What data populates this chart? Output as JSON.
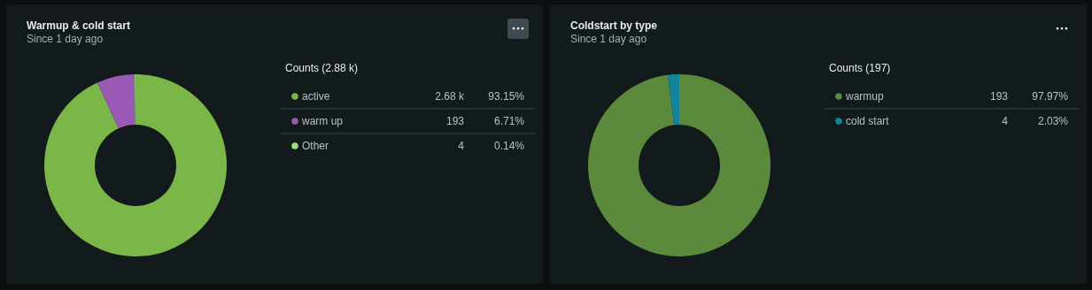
{
  "chart_data": [
    {
      "type": "donut",
      "title": "Warmup & cold start",
      "subtitle": "Since 1 day ago",
      "legend_title": "Counts (2.88 k)",
      "legend": "right",
      "categories": [
        "active",
        "warm up",
        "Other"
      ],
      "values": [
        2680,
        193,
        4
      ],
      "colors": [
        "#7ab648",
        "#9b59b6",
        "#9de07b"
      ],
      "value_labels": [
        "2.68 k",
        "193",
        "4"
      ],
      "annotations": [
        "93.15%",
        "6.71%",
        "0.14%"
      ]
    },
    {
      "type": "donut",
      "title": "Coldstart by type",
      "subtitle": "Since 1 day ago",
      "legend_title": "Counts (197)",
      "legend": "right",
      "categories": [
        "warmup",
        "cold start"
      ],
      "values": [
        193,
        4
      ],
      "colors": [
        "#5b8a3c",
        "#14849a"
      ],
      "value_labels": [
        "193",
        "4"
      ],
      "annotations": [
        "97.97%",
        "2.03%"
      ]
    }
  ]
}
